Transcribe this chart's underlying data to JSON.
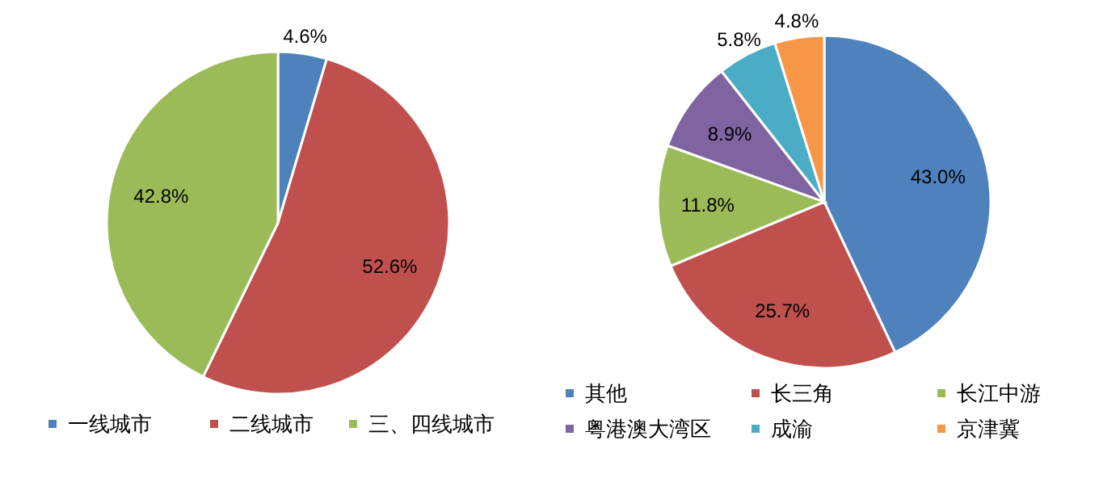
{
  "chart_data": [
    {
      "type": "pie",
      "categories": [
        "一线城市",
        "二线城市",
        "三、四线城市"
      ],
      "values": [
        4.6,
        52.6,
        42.8
      ],
      "colors": [
        "#4f81bd",
        "#c0504d",
        "#9bbb59"
      ],
      "value_labels": [
        "4.6%",
        "52.6%",
        "42.8%"
      ],
      "legend": "bottom"
    },
    {
      "type": "pie",
      "categories": [
        "其他",
        "长三角",
        "长江中游",
        "粤港澳大湾区",
        "成渝",
        "京津冀"
      ],
      "values": [
        43.0,
        25.7,
        11.8,
        8.9,
        5.8,
        4.8
      ],
      "colors": [
        "#4f81bd",
        "#c0504d",
        "#9bbb59",
        "#8064a2",
        "#4bacc6",
        "#f79646"
      ],
      "value_labels": [
        "43.0%",
        "25.7%",
        "11.8%",
        "8.9%",
        "5.8%",
        "4.8%"
      ],
      "legend": "bottom"
    }
  ]
}
